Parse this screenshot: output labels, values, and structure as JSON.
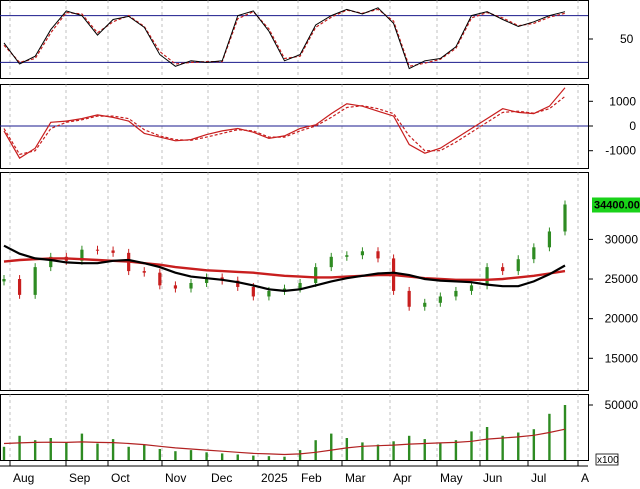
{
  "chart_data": [
    {
      "type": "line",
      "panel": "stochastic",
      "title": "",
      "ylim": [
        0,
        100
      ],
      "y_ticks": [
        "50"
      ],
      "reference_levels": [
        20,
        80
      ],
      "x": [
        "Jul",
        "Aug",
        "Aug",
        "Aug",
        "Sep",
        "Sep",
        "Sep",
        "Oct",
        "Oct",
        "Oct",
        "Nov",
        "Nov",
        "Nov",
        "Dec",
        "Dec",
        "Dec",
        "Jan",
        "Jan",
        "Jan",
        "Feb",
        "Feb",
        "Feb",
        "Mar",
        "Mar",
        "Mar",
        "Apr",
        "Apr",
        "Apr",
        "May",
        "May",
        "May",
        "Jun",
        "Jun",
        "Jun",
        "Jul",
        "Jul",
        "Jul"
      ],
      "series": [
        {
          "values": [
            45,
            18,
            28,
            62,
            86,
            80,
            55,
            75,
            79,
            65,
            30,
            15,
            22,
            20,
            22,
            80,
            86,
            60,
            22,
            30,
            68,
            80,
            88,
            82,
            90,
            70,
            12,
            22,
            25,
            40,
            80,
            85,
            75,
            66,
            72,
            80,
            85
          ]
        },
        {
          "values": [
            42,
            20,
            25,
            58,
            84,
            82,
            58,
            72,
            80,
            66,
            34,
            18,
            20,
            21,
            21,
            76,
            85,
            63,
            25,
            28,
            65,
            78,
            87,
            83,
            88,
            73,
            15,
            19,
            24,
            38,
            77,
            84,
            77,
            67,
            70,
            78,
            83
          ]
        }
      ]
    },
    {
      "type": "line",
      "panel": "macd",
      "title": "",
      "ylim": [
        -1700,
        1700
      ],
      "y_ticks": [
        "1000",
        "0",
        "-1000"
      ],
      "reference_levels": [
        0
      ],
      "x": [
        "Jul",
        "Aug",
        "Aug",
        "Aug",
        "Sep",
        "Sep",
        "Sep",
        "Oct",
        "Oct",
        "Oct",
        "Nov",
        "Nov",
        "Nov",
        "Dec",
        "Dec",
        "Dec",
        "Jan",
        "Jan",
        "Jan",
        "Feb",
        "Feb",
        "Feb",
        "Mar",
        "Mar",
        "Mar",
        "Apr",
        "Apr",
        "Apr",
        "May",
        "May",
        "May",
        "Jun",
        "Jun",
        "Jun",
        "Jul",
        "Jul",
        "Jul"
      ],
      "series": [
        {
          "values": [
            -200,
            -1300,
            -900,
            150,
            200,
            300,
            450,
            350,
            200,
            -300,
            -450,
            -600,
            -550,
            -350,
            -200,
            -100,
            -250,
            -500,
            -400,
            -100,
            50,
            500,
            900,
            800,
            600,
            400,
            -750,
            -1100,
            -900,
            -500,
            -100,
            300,
            700,
            550,
            500,
            800,
            1550
          ]
        },
        {
          "values": [
            -100,
            -1150,
            -1000,
            -100,
            150,
            250,
            400,
            400,
            300,
            -150,
            -400,
            -550,
            -580,
            -450,
            -300,
            -150,
            -200,
            -450,
            -450,
            -200,
            0,
            350,
            750,
            820,
            700,
            500,
            -400,
            -1000,
            -1000,
            -650,
            -250,
            150,
            550,
            600,
            520,
            700,
            1200
          ]
        }
      ]
    },
    {
      "type": "candlestick",
      "panel": "price",
      "title": "",
      "ylim": [
        11000,
        38500
      ],
      "y_ticks": [
        "30000",
        "25000",
        "20000",
        "15000"
      ],
      "last_price_label": "34400.00",
      "x": [
        "Jul",
        "Aug",
        "Aug",
        "Aug",
        "Sep",
        "Sep",
        "Sep",
        "Oct",
        "Oct",
        "Oct",
        "Nov",
        "Nov",
        "Nov",
        "Dec",
        "Dec",
        "Dec",
        "Jan",
        "Jan",
        "Jan",
        "Feb",
        "Feb",
        "Feb",
        "Mar",
        "Mar",
        "Mar",
        "Apr",
        "Apr",
        "Apr",
        "May",
        "May",
        "May",
        "Jun",
        "Jun",
        "Jun",
        "Jul",
        "Jul",
        "Jul"
      ],
      "close": [
        25000,
        23000,
        26500,
        27800,
        27300,
        28700,
        28600,
        28300,
        26000,
        25800,
        24200,
        23800,
        24500,
        25200,
        24800,
        24000,
        22800,
        23500,
        23800,
        24500,
        26500,
        27800,
        28000,
        28500,
        27600,
        23500,
        21500,
        22000,
        22800,
        23500,
        24200,
        26500,
        26000,
        27500,
        29000,
        31000,
        34400
      ],
      "series": [
        {
          "name": "",
          "values": [
            29200,
            28200,
            27600,
            27400,
            27100,
            27000,
            27000,
            27300,
            27400,
            27000,
            26500,
            25800,
            25300,
            25100,
            24900,
            24600,
            24200,
            23700,
            23500,
            23700,
            24200,
            24700,
            25100,
            25400,
            25700,
            25800,
            25500,
            25000,
            24800,
            24700,
            24600,
            24300,
            24100,
            24100,
            24700,
            25600,
            26700
          ]
        },
        {
          "name": "",
          "values": [
            27200,
            27400,
            27500,
            27600,
            27600,
            27500,
            27400,
            27300,
            27200,
            27000,
            26800,
            26500,
            26300,
            26100,
            26000,
            25900,
            25800,
            25600,
            25400,
            25300,
            25200,
            25200,
            25300,
            25400,
            25500,
            25500,
            25300,
            25100,
            25000,
            24900,
            24900,
            24900,
            25000,
            25200,
            25400,
            25700,
            26000
          ]
        }
      ]
    },
    {
      "type": "bar",
      "panel": "volume",
      "title": "",
      "ylim": [
        0,
        60000
      ],
      "y_ticks": [
        "50000"
      ],
      "unit_label": "x100",
      "x": [
        "Jul",
        "Aug",
        "Aug",
        "Aug",
        "Sep",
        "Sep",
        "Sep",
        "Oct",
        "Oct",
        "Oct",
        "Nov",
        "Nov",
        "Nov",
        "Dec",
        "Dec",
        "Dec",
        "Jan",
        "Jan",
        "Jan",
        "Feb",
        "Feb",
        "Feb",
        "Mar",
        "Mar",
        "Mar",
        "Apr",
        "Apr",
        "Apr",
        "May",
        "May",
        "May",
        "Jun",
        "Jun",
        "Jun",
        "Jul",
        "Jul",
        "Jul"
      ],
      "categories": [
        "Aug",
        "Sep",
        "Oct",
        "Nov",
        "Dec",
        "2025",
        "Feb",
        "Mar",
        "Apr",
        "May",
        "Jun",
        "Jul",
        "A"
      ],
      "values": [
        12000,
        22000,
        18000,
        20000,
        16000,
        24000,
        15000,
        19000,
        12000,
        14000,
        10000,
        8000,
        9000,
        7000,
        6000,
        5000,
        4000,
        3500,
        3000,
        9000,
        18000,
        24000,
        20000,
        16000,
        14000,
        17000,
        22000,
        19000,
        15000,
        18000,
        26000,
        30000,
        22000,
        25000,
        28000,
        42000,
        50000
      ],
      "series": [
        {
          "name": "",
          "values": [
            15000,
            15500,
            16000,
            16200,
            16000,
            16500,
            16000,
            15800,
            15000,
            14000,
            12500,
            11000,
            10000,
            9000,
            8000,
            7000,
            6000,
            5500,
            5000,
            5500,
            7000,
            9000,
            11000,
            12500,
            13000,
            13500,
            14500,
            15000,
            15500,
            16000,
            17000,
            19000,
            20000,
            21000,
            22500,
            25000,
            28000
          ]
        }
      ]
    }
  ],
  "colors": {
    "background": "#ffffff",
    "panel_border": "#000000",
    "reference_line": "#1a1a8c",
    "fast_line": "#c81e1e",
    "slow_line": "#000000",
    "up_candle": "#2e8b22",
    "down_candle": "#c81e1e",
    "ma_short": "#000000",
    "ma_long": "#c81e1e",
    "volume_bar": "#2e8b22",
    "volume_ma": "#b22222",
    "grid": "#999999",
    "price_tag_bg": "#19d219"
  }
}
